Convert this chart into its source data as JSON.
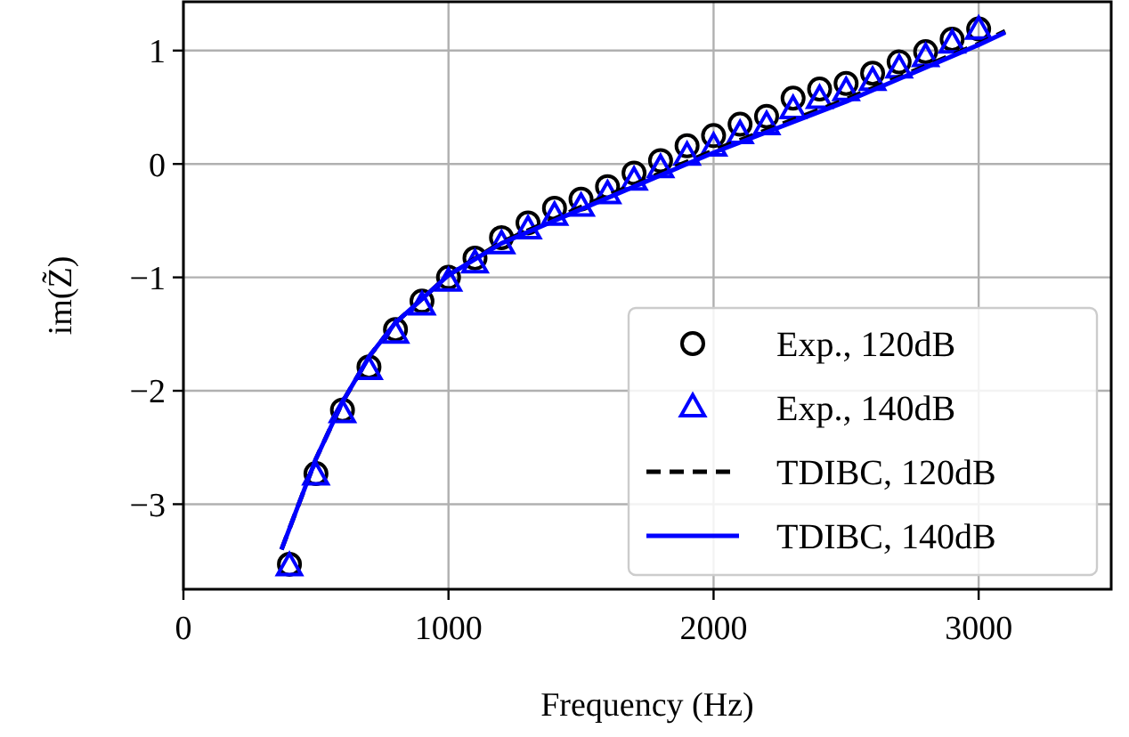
{
  "chart_data": {
    "type": "scatter",
    "xlabel": "Frequency (Hz)",
    "ylabel": "im(Z̃)",
    "xlim": [
      0,
      3500
    ],
    "ylim": [
      -3.75,
      1.43
    ],
    "xticks": [
      0,
      1000,
      2000,
      3000
    ],
    "yticks": [
      {
        "value": -3,
        "label": "−3"
      },
      {
        "value": -2,
        "label": "−2"
      },
      {
        "value": -1,
        "label": "−1"
      },
      0,
      1
    ],
    "grid": true,
    "legend": "bottom right",
    "series": [
      {
        "name": "Exp., 120dB",
        "marker": "circle",
        "color": "#000000",
        "x": [
          400,
          500,
          600,
          700,
          800,
          900,
          1000,
          1100,
          1200,
          1300,
          1400,
          1500,
          1600,
          1700,
          1800,
          1900,
          2000,
          2100,
          2200,
          2300,
          2400,
          2500,
          2600,
          2700,
          2800,
          2900,
          3000
        ],
        "values": [
          -3.53,
          -2.73,
          -2.17,
          -1.79,
          -1.46,
          -1.21,
          -1.0,
          -0.83,
          -0.65,
          -0.52,
          -0.39,
          -0.31,
          -0.2,
          -0.08,
          0.03,
          0.16,
          0.25,
          0.35,
          0.42,
          0.58,
          0.66,
          0.71,
          0.8,
          0.9,
          0.99,
          1.1,
          1.19
        ]
      },
      {
        "name": "Exp., 140dB",
        "marker": "triangle",
        "color": "#0000ff",
        "x": [
          400,
          500,
          600,
          700,
          800,
          900,
          1000,
          1100,
          1200,
          1300,
          1400,
          1500,
          1600,
          1700,
          1800,
          1900,
          2000,
          2100,
          2200,
          2300,
          2400,
          2500,
          2600,
          2700,
          2800,
          2900,
          3000
        ],
        "values": [
          -3.55,
          -2.75,
          -2.2,
          -1.82,
          -1.5,
          -1.25,
          -1.04,
          -0.88,
          -0.71,
          -0.58,
          -0.46,
          -0.38,
          -0.27,
          -0.15,
          -0.04,
          0.07,
          0.15,
          0.26,
          0.34,
          0.48,
          0.57,
          0.64,
          0.73,
          0.84,
          0.94,
          1.06,
          1.18
        ]
      },
      {
        "name": "TDIBC, 120dB",
        "type": "line",
        "line_style": "dashed",
        "marker": "none",
        "color": "#000000",
        "x": [
          370,
          500,
          600,
          700,
          800,
          900,
          1000,
          1200,
          1500,
          2000,
          2500,
          3000,
          3100
        ],
        "values": [
          -3.4,
          -2.6,
          -2.1,
          -1.7,
          -1.4,
          -1.19,
          -0.98,
          -0.69,
          -0.38,
          0.12,
          0.57,
          1.06,
          1.17
        ]
      },
      {
        "name": "TDIBC, 140dB",
        "type": "line",
        "line_style": "solid",
        "marker": "none",
        "color": "#0000ff",
        "x": [
          370,
          500,
          600,
          700,
          800,
          900,
          1000,
          1200,
          1500,
          2000,
          2500,
          3000,
          3100
        ],
        "values": [
          -3.4,
          -2.6,
          -2.1,
          -1.7,
          -1.4,
          -1.19,
          -0.98,
          -0.7,
          -0.4,
          0.1,
          0.55,
          1.05,
          1.16
        ]
      }
    ]
  }
}
